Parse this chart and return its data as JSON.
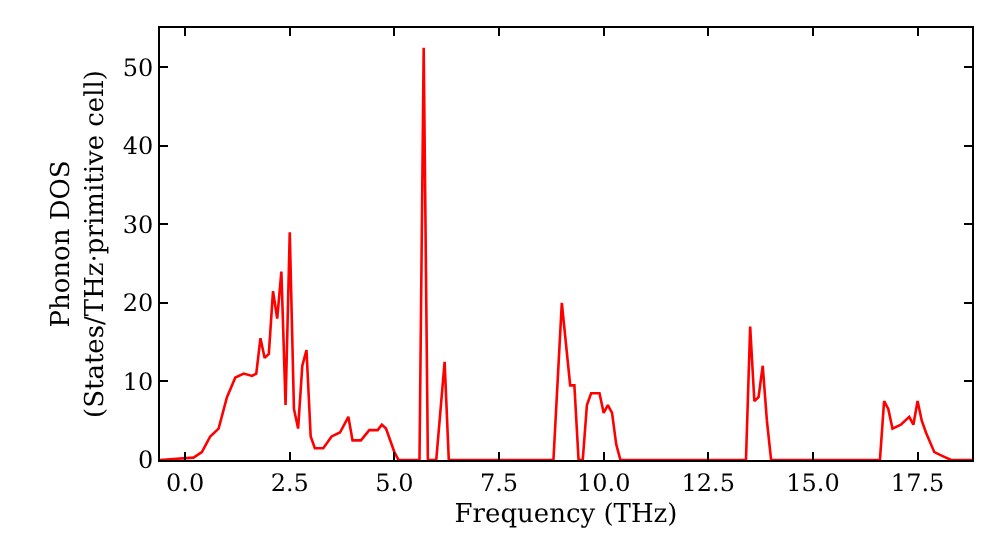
{
  "chart_data": {
    "type": "line",
    "xlabel": "Frequency (THz)",
    "ylabel": "Phonon DOS\n(States/THz·primitive cell)",
    "xlim": [
      -0.6,
      18.8
    ],
    "ylim": [
      0,
      55
    ],
    "xticks": [
      {
        "value": 0,
        "label": "0.0"
      },
      {
        "value": 2.5,
        "label": "2.5"
      },
      {
        "value": 5,
        "label": "5.0"
      },
      {
        "value": 7.5,
        "label": "7.5"
      },
      {
        "value": 10,
        "label": "10.0"
      },
      {
        "value": 12.5,
        "label": "12.5"
      },
      {
        "value": 15,
        "label": "15.0"
      },
      {
        "value": 17.5,
        "label": "17.5"
      }
    ],
    "yticks": [
      0,
      10,
      20,
      30,
      40,
      50
    ],
    "marker": "none",
    "line_style": "solid",
    "series": [
      {
        "color": "#ff0000",
        "x": [
          -0.6,
          0.2,
          0.4,
          0.6,
          0.8,
          1.0,
          1.2,
          1.4,
          1.6,
          1.7,
          1.8,
          1.9,
          2.0,
          2.1,
          2.2,
          2.3,
          2.4,
          2.5,
          2.6,
          2.7,
          2.8,
          2.9,
          3.0,
          3.1,
          3.3,
          3.5,
          3.7,
          3.9,
          4.0,
          4.2,
          4.4,
          4.6,
          4.7,
          4.8,
          5.0,
          5.1,
          5.6,
          5.7,
          5.8,
          6.0,
          6.2,
          6.3,
          8.8,
          9.0,
          9.2,
          9.3,
          9.4,
          9.5,
          9.6,
          9.7,
          9.9,
          10.0,
          10.1,
          10.2,
          10.3,
          10.4,
          13.4,
          13.5,
          13.6,
          13.7,
          13.8,
          13.9,
          14.0,
          16.6,
          16.7,
          16.8,
          16.9,
          17.1,
          17.3,
          17.4,
          17.5,
          17.6,
          17.7,
          17.9,
          18.1,
          18.3,
          18.8
        ],
        "values": [
          0,
          0.3,
          1,
          3,
          4,
          8,
          10.5,
          11,
          10.7,
          11,
          15.5,
          13,
          13.5,
          21.5,
          18,
          24,
          7,
          29,
          6.5,
          4,
          12,
          14,
          3,
          1.5,
          1.5,
          3,
          3.5,
          5.5,
          2.5,
          2.5,
          3.8,
          3.8,
          4.5,
          4,
          1,
          0,
          0,
          52.5,
          0,
          0,
          12.5,
          0,
          0,
          20,
          9.5,
          9.5,
          0,
          0,
          7,
          8.5,
          8.5,
          6,
          7,
          6,
          2,
          0,
          0,
          17,
          7.5,
          8,
          12,
          5,
          0,
          0,
          7.5,
          6.5,
          4,
          4.5,
          5.5,
          4.5,
          7.5,
          5,
          3.5,
          1,
          0.5,
          0,
          0
        ]
      }
    ]
  }
}
